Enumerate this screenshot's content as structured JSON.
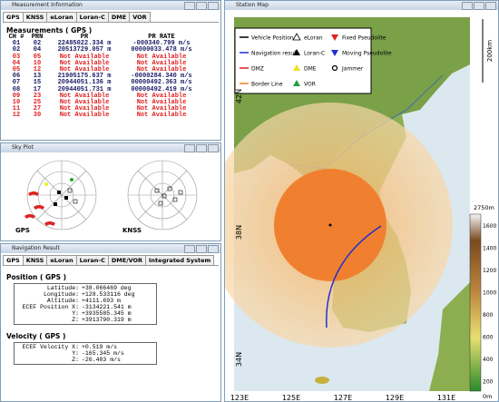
{
  "windows": {
    "measurement": "Measurement Information",
    "sky": "Sky Plot",
    "nav": "Navigation Result",
    "map": "Station Map"
  },
  "measurement": {
    "tabs": [
      "GPS",
      "KNSS",
      "eLoran",
      "Loran-C",
      "DME",
      "VOR"
    ],
    "heading": "Measurements ( GPS )",
    "columns": [
      "CH #",
      "PRN",
      "PR",
      "PR RATE"
    ],
    "rows": [
      {
        "cells": [
          "01",
          "02",
          "22485022.334 m",
          "-000340.799 m/s"
        ],
        "color": "#1a1a66"
      },
      {
        "cells": [
          "02",
          "04",
          "20513729.057 m",
          "00000033.478 m/s"
        ],
        "color": "#1a1a66"
      },
      {
        "cells": [
          "03",
          "05",
          "Not Available",
          "Not Available"
        ],
        "color": "#e02020"
      },
      {
        "cells": [
          "04",
          "10",
          "Not Available",
          "Not Available"
        ],
        "color": "#e02020"
      },
      {
        "cells": [
          "05",
          "12",
          "Not Available",
          "Not Available"
        ],
        "color": "#e02020"
      },
      {
        "cells": [
          "06",
          "13",
          "21905175.637 m",
          "-0000284.340 m/s"
        ],
        "color": "#1a1a66"
      },
      {
        "cells": [
          "07",
          "15",
          "20944051.136 m",
          "00000492.363 m/s"
        ],
        "color": "#1a1a66"
      },
      {
        "cells": [
          "08",
          "17",
          "20944051.731 m",
          "00000492.419 m/s"
        ],
        "color": "#1a1a66"
      },
      {
        "cells": [
          "09",
          "23",
          "Not Available",
          "Not Available"
        ],
        "color": "#e02020"
      },
      {
        "cells": [
          "10",
          "25",
          "Not Available",
          "Not Available"
        ],
        "color": "#e02020"
      },
      {
        "cells": [
          "11",
          "27",
          "Not Available",
          "Not Available"
        ],
        "color": "#e02020"
      },
      {
        "cells": [
          "12",
          "30",
          "Not Available",
          "Not Available"
        ],
        "color": "#e02020"
      }
    ]
  },
  "sky": {
    "labels": [
      "GPS",
      "KNSS"
    ]
  },
  "nav": {
    "tabs": [
      "GPS",
      "KNSS",
      "eLoran",
      "Loran-C",
      "DME/VOR",
      "Integrated System"
    ],
    "position_heading": "Position ( GPS )",
    "position": [
      [
        "Latitude:",
        "+38.066469 deg"
      ],
      [
        "Longitude:",
        "+128.533116 deg"
      ],
      [
        "Altitude:",
        "+4111.693 m"
      ],
      [
        "ECEF Position X:",
        "-3134221.541 m"
      ],
      [
        "Y:",
        "+3935585.345 m"
      ],
      [
        "Z:",
        "+3913790.319 m"
      ]
    ],
    "velocity_heading": "Velocity ( GPS )",
    "velocity": [
      [
        "ECEF Velocity X:",
        "+0.519 m/s"
      ],
      [
        "Y:",
        "-165.345 m/s"
      ],
      [
        "Z:",
        "-26.403 m/s"
      ]
    ]
  },
  "map": {
    "legend": [
      {
        "label": "Vehicle Position",
        "symbol": "line",
        "color": "#000000"
      },
      {
        "label": "eLoran",
        "symbol": "triangle-open",
        "color": "#000000"
      },
      {
        "label": "Fixed Pseudolite",
        "symbol": "triangle-down",
        "color": "#e02020"
      },
      {
        "label": "Navigation result",
        "symbol": "line",
        "color": "#2030d0"
      },
      {
        "label": "Loran-C",
        "symbol": "triangle",
        "color": "#000000"
      },
      {
        "label": "Moving Pseudolite",
        "symbol": "triangle-down",
        "color": "#2030d0"
      },
      {
        "label": "DMZ",
        "symbol": "line",
        "color": "#e02020"
      },
      {
        "label": "DME",
        "symbol": "triangle",
        "color": "#f0e020"
      },
      {
        "label": "Jammer",
        "symbol": "circle",
        "color": "#000000"
      },
      {
        "label": "Border Line",
        "symbol": "line",
        "color": "#f08020"
      },
      {
        "label": "VOR",
        "symbol": "triangle",
        "color": "#20a040"
      }
    ],
    "scale": "200km",
    "lat_labels": [
      "42N",
      "38N",
      "34N"
    ],
    "lon_labels": [
      "123E",
      "125E",
      "127E",
      "129E",
      "131E"
    ],
    "colorbar": {
      "top": "2750m",
      "ticks": [
        "1600",
        "1400",
        "1200",
        "1000",
        "800",
        "600",
        "400",
        "200"
      ],
      "bottom": "0m"
    }
  }
}
